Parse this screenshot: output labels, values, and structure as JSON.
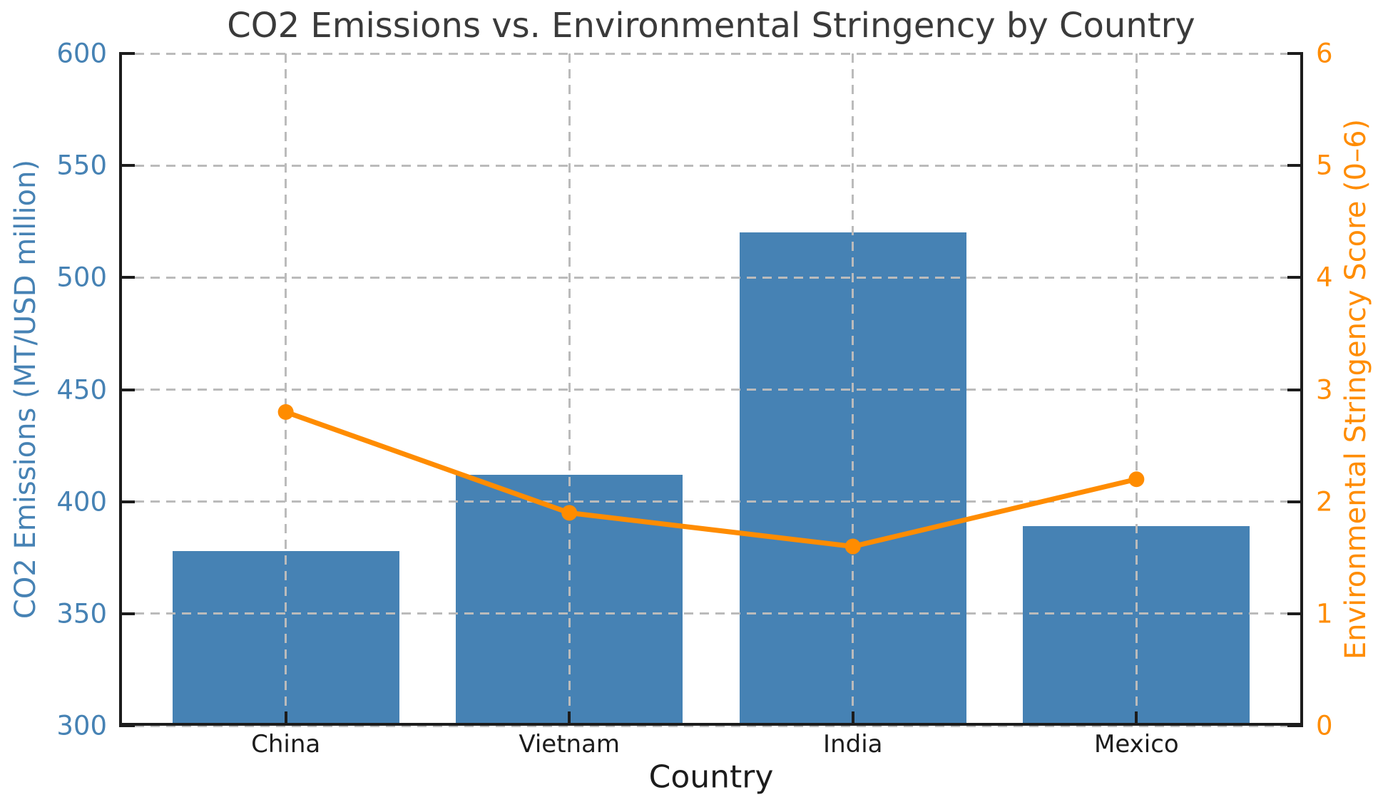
{
  "chart_data": {
    "type": "combo-bar-line-dual-axis",
    "title": "CO2 Emissions vs. Environmental Stringency by Country",
    "xlabel": "Country",
    "categories": [
      "China",
      "Vietnam",
      "India",
      "Mexico"
    ],
    "series": [
      {
        "name": "CO2 Emissions",
        "type": "bar",
        "axis": "left",
        "color": "#4682B4",
        "values": [
          378,
          412,
          520,
          389
        ]
      },
      {
        "name": "Environmental Stringency Score",
        "type": "line",
        "axis": "right",
        "color": "#FF8C00",
        "values": [
          2.8,
          1.9,
          1.6,
          2.2
        ]
      }
    ],
    "left_axis": {
      "label": "CO2 Emissions (MT/USD million)",
      "min": 300,
      "max": 600,
      "tick_step": 50,
      "tick_labels": [
        "300",
        "350",
        "400",
        "450",
        "500",
        "550",
        "600"
      ],
      "color": "#4682B4"
    },
    "right_axis": {
      "label": "Environmental Stringency Score (0–6)",
      "min": 0,
      "max": 6,
      "tick_step": 1,
      "tick_labels": [
        "0",
        "1",
        "2",
        "3",
        "4",
        "5",
        "6"
      ],
      "color": "#FF8C00"
    },
    "grid": {
      "on": true,
      "style": "dashed",
      "color": "#bbbbbb"
    },
    "legend": "none"
  }
}
